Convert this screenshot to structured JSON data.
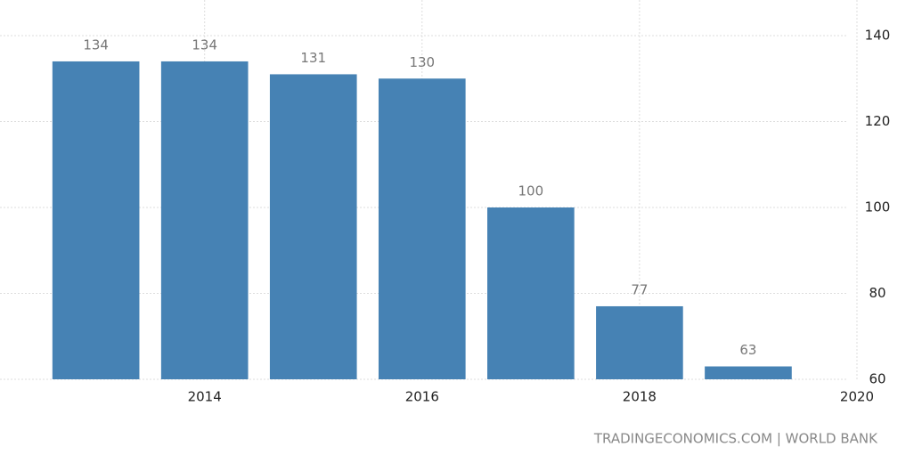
{
  "chart_data": {
    "type": "bar",
    "x": [
      2013,
      2014,
      2015,
      2016,
      2017,
      2018,
      2019
    ],
    "values": [
      134,
      134,
      131,
      130,
      100,
      77,
      63
    ],
    "color": "#4682b4",
    "xlim": [
      2012.2,
      2020
    ],
    "xticks": [
      2014,
      2016,
      2018,
      2020
    ],
    "ylim": [
      60,
      140
    ],
    "yticks": [
      60,
      80,
      100,
      120,
      140
    ],
    "grid": true,
    "source": "TRADINGECONOMICS.COM | WORLD BANK"
  }
}
